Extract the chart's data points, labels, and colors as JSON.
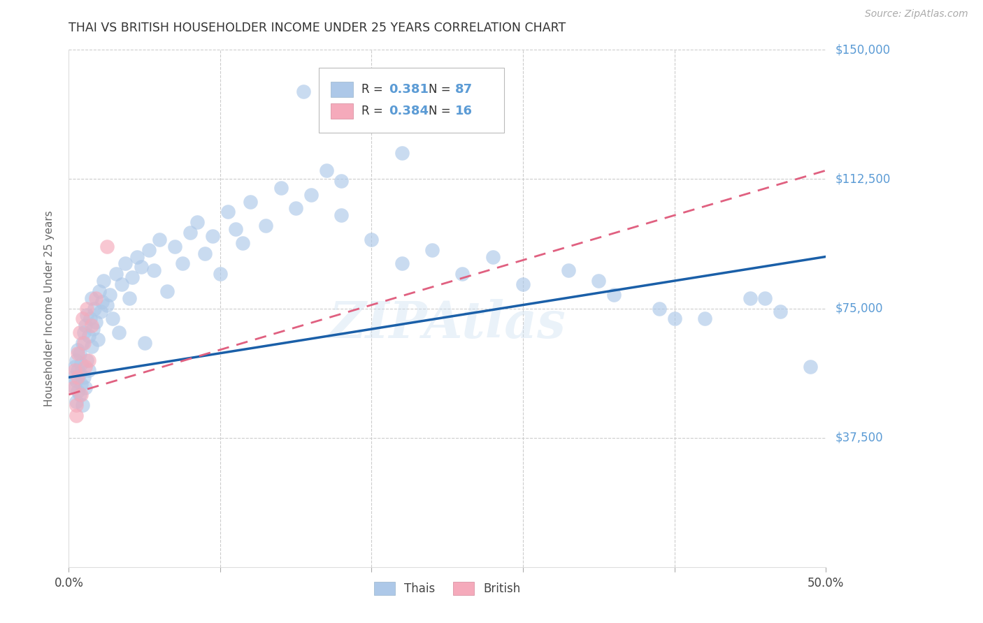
{
  "title": "THAI VS BRITISH HOUSEHOLDER INCOME UNDER 25 YEARS CORRELATION CHART",
  "source": "Source: ZipAtlas.com",
  "ylabel": "Householder Income Under 25 years",
  "xlim": [
    0,
    0.5
  ],
  "ylim": [
    0,
    150000
  ],
  "ytick_labels_right": [
    "$150,000",
    "$112,500",
    "$75,000",
    "$37,500"
  ],
  "ytick_values_right": [
    150000,
    112500,
    75000,
    37500
  ],
  "grid_color": "#cccccc",
  "watermark": "ZIPAtlas",
  "thai_color": "#adc8e8",
  "british_color": "#f5aabb",
  "thai_line_color": "#1a5fa8",
  "british_line_color": "#e06080",
  "title_color": "#333333",
  "axis_label_color": "#666666",
  "right_tick_color": "#5b9bd5",
  "r_thai": "0.381",
  "n_thai": "87",
  "r_brit": "0.384",
  "n_brit": "16",
  "thai_x": [
    0.003,
    0.004,
    0.004,
    0.005,
    0.005,
    0.005,
    0.006,
    0.006,
    0.006,
    0.007,
    0.007,
    0.007,
    0.008,
    0.008,
    0.009,
    0.009,
    0.01,
    0.01,
    0.011,
    0.011,
    0.012,
    0.012,
    0.013,
    0.013,
    0.014,
    0.015,
    0.015,
    0.016,
    0.017,
    0.018,
    0.019,
    0.02,
    0.021,
    0.022,
    0.023,
    0.025,
    0.027,
    0.029,
    0.031,
    0.033,
    0.035,
    0.037,
    0.04,
    0.042,
    0.045,
    0.048,
    0.05,
    0.053,
    0.056,
    0.06,
    0.065,
    0.07,
    0.075,
    0.08,
    0.085,
    0.09,
    0.095,
    0.1,
    0.105,
    0.11,
    0.115,
    0.12,
    0.13,
    0.14,
    0.15,
    0.16,
    0.17,
    0.18,
    0.2,
    0.22,
    0.24,
    0.26,
    0.28,
    0.3,
    0.33,
    0.36,
    0.39,
    0.42,
    0.45,
    0.47,
    0.155,
    0.18,
    0.22,
    0.35,
    0.4,
    0.46,
    0.49
  ],
  "thai_y": [
    55000,
    52000,
    58000,
    48000,
    54000,
    60000,
    51000,
    57000,
    63000,
    50000,
    56000,
    62000,
    53000,
    59000,
    47000,
    65000,
    55000,
    68000,
    52000,
    70000,
    60000,
    73000,
    57000,
    67000,
    72000,
    64000,
    78000,
    69000,
    75000,
    71000,
    66000,
    80000,
    74000,
    77000,
    83000,
    76000,
    79000,
    72000,
    85000,
    68000,
    82000,
    88000,
    78000,
    84000,
    90000,
    87000,
    65000,
    92000,
    86000,
    95000,
    80000,
    93000,
    88000,
    97000,
    100000,
    91000,
    96000,
    85000,
    103000,
    98000,
    94000,
    106000,
    99000,
    110000,
    104000,
    108000,
    115000,
    112000,
    95000,
    88000,
    92000,
    85000,
    90000,
    82000,
    86000,
    79000,
    75000,
    72000,
    78000,
    74000,
    138000,
    102000,
    120000,
    83000,
    72000,
    78000,
    58000
  ],
  "british_x": [
    0.003,
    0.004,
    0.005,
    0.006,
    0.006,
    0.007,
    0.008,
    0.009,
    0.01,
    0.011,
    0.012,
    0.013,
    0.015,
    0.018,
    0.025,
    0.005
  ],
  "british_y": [
    52000,
    57000,
    47000,
    62000,
    55000,
    68000,
    50000,
    72000,
    65000,
    58000,
    75000,
    60000,
    70000,
    78000,
    93000,
    44000
  ]
}
